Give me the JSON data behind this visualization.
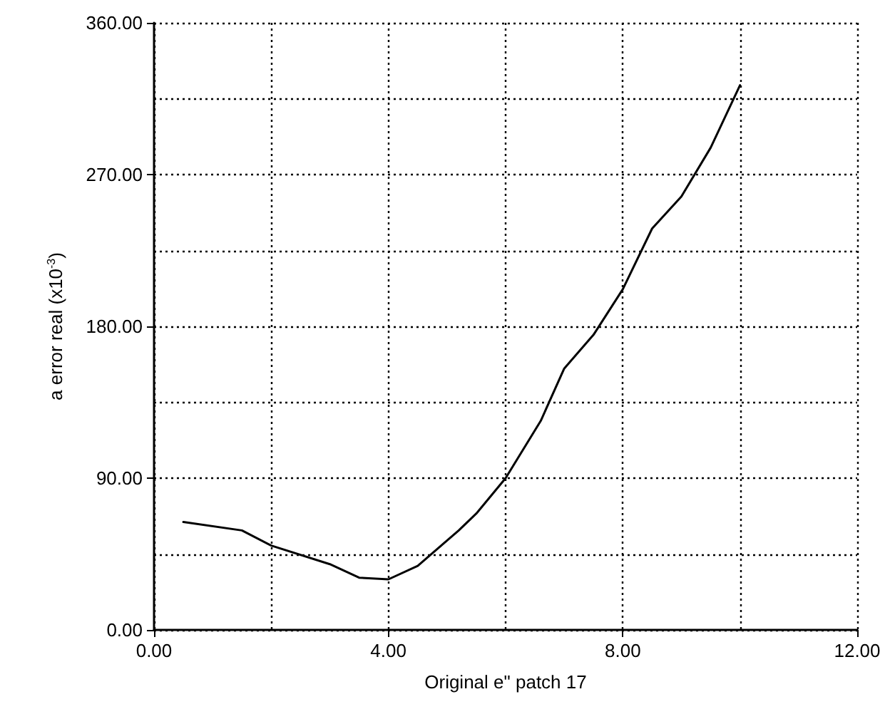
{
  "chart_data": {
    "type": "line",
    "xlabel": "Original e\" patch 17",
    "ylabel": "a error real (x10$^{-3}$)",
    "xlim": [
      0,
      12
    ],
    "ylim": [
      0,
      360
    ],
    "xticks": [
      {
        "value": 0,
        "label": "0.00"
      },
      {
        "value": 2,
        "label": null
      },
      {
        "value": 4,
        "label": "4.00"
      },
      {
        "value": 6,
        "label": null
      },
      {
        "value": 8,
        "label": "8.00"
      },
      {
        "value": 10,
        "label": null
      },
      {
        "value": 12,
        "label": "12.00"
      }
    ],
    "yticks": [
      {
        "value": 0,
        "label": "0.00"
      },
      {
        "value": 45,
        "label": null
      },
      {
        "value": 90,
        "label": "90.00"
      },
      {
        "value": 135,
        "label": null
      },
      {
        "value": 180,
        "label": "180.00"
      },
      {
        "value": 225,
        "label": null
      },
      {
        "value": 270,
        "label": "270.00"
      },
      {
        "value": 315,
        "label": null
      },
      {
        "value": 360,
        "label": "360.00"
      }
    ],
    "grid": true,
    "marker": "none",
    "line_style": "solid",
    "series": [
      {
        "color": "#000000",
        "x": [
          0.5,
          1.5,
          2,
          3,
          3.5,
          4,
          4.5,
          5.2,
          5.5,
          6,
          6.6,
          7,
          7.5,
          8,
          8.5,
          9,
          9.5,
          10
        ],
        "values": [
          64,
          59,
          50,
          39,
          31,
          30,
          38,
          59,
          69,
          90,
          124,
          155,
          175,
          202,
          238,
          257,
          286,
          323
        ]
      }
    ]
  }
}
